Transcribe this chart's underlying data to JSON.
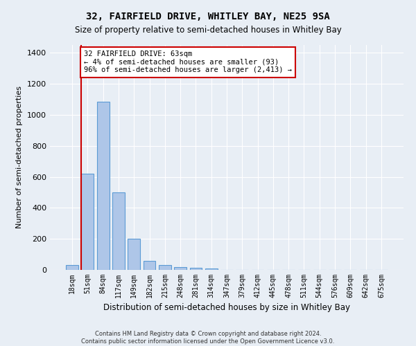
{
  "title1": "32, FAIRFIELD DRIVE, WHITLEY BAY, NE25 9SA",
  "title2": "Size of property relative to semi-detached houses in Whitley Bay",
  "xlabel": "Distribution of semi-detached houses by size in Whitley Bay",
  "ylabel": "Number of semi-detached properties",
  "footer1": "Contains HM Land Registry data © Crown copyright and database right 2024.",
  "footer2": "Contains public sector information licensed under the Open Government Licence v3.0.",
  "bin_labels": [
    "18sqm",
    "51sqm",
    "84sqm",
    "117sqm",
    "149sqm",
    "182sqm",
    "215sqm",
    "248sqm",
    "281sqm",
    "314sqm",
    "347sqm",
    "379sqm",
    "412sqm",
    "445sqm",
    "478sqm",
    "511sqm",
    "544sqm",
    "576sqm",
    "609sqm",
    "642sqm",
    "675sqm"
  ],
  "bar_values": [
    30,
    620,
    1085,
    500,
    200,
    60,
    30,
    20,
    15,
    10,
    0,
    0,
    0,
    0,
    0,
    0,
    0,
    0,
    0,
    0,
    0
  ],
  "bar_color": "#aec6e8",
  "bar_edge_color": "#5b9bd5",
  "property_bin_index": 1,
  "vline_color": "#cc0000",
  "annotation_text": "32 FAIRFIELD DRIVE: 63sqm\n← 4% of semi-detached houses are smaller (93)\n96% of semi-detached houses are larger (2,413) →",
  "annotation_box_color": "#ffffff",
  "annotation_box_edge": "#cc0000",
  "ylim": [
    0,
    1450
  ],
  "background_color": "#e8eef5",
  "grid_color": "#ffffff"
}
